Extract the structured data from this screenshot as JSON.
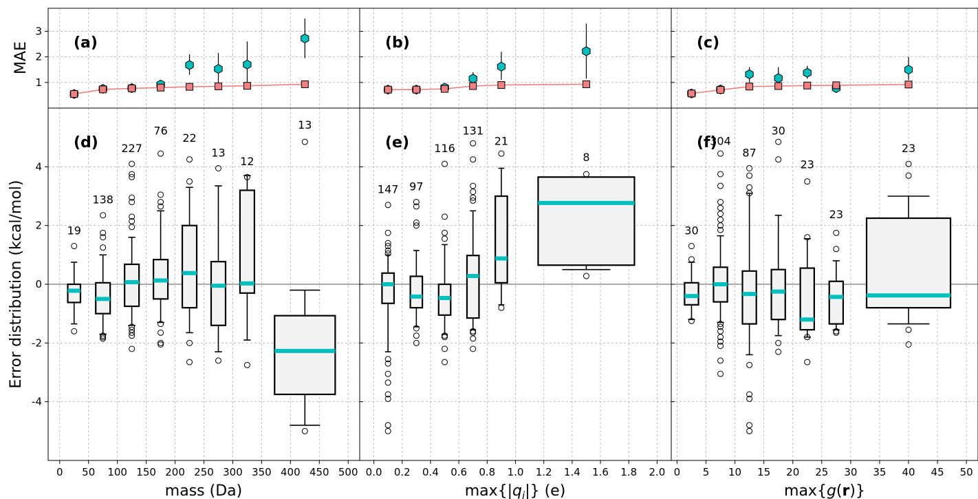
{
  "chart_data": [
    {
      "type": "line",
      "panel": "a",
      "panel_label": "(a)",
      "ylabel": "MAE",
      "ylim": [
        0,
        3.9
      ],
      "yticks": [
        "1",
        "2",
        "3"
      ],
      "xlim": [
        -20,
        520
      ],
      "grid": true,
      "series": [
        {
          "marker": "hexagon",
          "color": "#00bfbf",
          "x": [
            25,
            75,
            125,
            175,
            225,
            275,
            325,
            425
          ],
          "y": [
            0.55,
            0.75,
            0.78,
            0.92,
            1.68,
            1.53,
            1.7,
            2.72
          ],
          "err_low": [
            0.45,
            0.65,
            0.7,
            0.75,
            1.3,
            1.0,
            1.0,
            1.95
          ],
          "err_high": [
            0.65,
            0.85,
            0.88,
            1.05,
            2.1,
            2.15,
            2.6,
            3.5
          ]
        },
        {
          "marker": "square",
          "color": "#f08080",
          "x": [
            25,
            75,
            125,
            175,
            225,
            275,
            325,
            425
          ],
          "y": [
            0.55,
            0.73,
            0.77,
            0.8,
            0.83,
            0.85,
            0.87,
            0.93
          ]
        }
      ]
    },
    {
      "type": "line",
      "panel": "b",
      "panel_label": "(b)",
      "ylim": [
        0,
        3.9
      ],
      "xlim": [
        -0.1,
        2.1
      ],
      "grid": true,
      "series": [
        {
          "marker": "hexagon",
          "color": "#00bfbf",
          "x": [
            0.1,
            0.3,
            0.5,
            0.7,
            0.9,
            1.5
          ],
          "y": [
            0.72,
            0.72,
            0.8,
            1.15,
            1.62,
            2.22
          ],
          "err_low": [
            0.62,
            0.62,
            0.7,
            0.9,
            1.1,
            1.15
          ],
          "err_high": [
            0.82,
            0.82,
            0.9,
            1.4,
            2.2,
            3.3
          ]
        },
        {
          "marker": "square",
          "color": "#f08080",
          "x": [
            0.1,
            0.3,
            0.5,
            0.7,
            0.9,
            1.5
          ],
          "y": [
            0.72,
            0.72,
            0.75,
            0.86,
            0.9,
            0.93
          ]
        }
      ]
    },
    {
      "type": "line",
      "panel": "c",
      "panel_label": "(c)",
      "ylim": [
        0,
        3.9
      ],
      "xlim": [
        -1,
        52
      ],
      "grid": true,
      "series": [
        {
          "marker": "hexagon",
          "color": "#00bfbf",
          "x": [
            2.5,
            7.5,
            12.5,
            17.5,
            22.5,
            27.5,
            40
          ],
          "y": [
            0.57,
            0.73,
            1.32,
            1.17,
            1.38,
            0.78,
            1.5
          ],
          "err_low": [
            0.47,
            0.63,
            1.0,
            0.8,
            1.15,
            0.6,
            1.1
          ],
          "err_high": [
            0.67,
            0.83,
            1.6,
            1.6,
            1.65,
            0.95,
            2.0
          ]
        },
        {
          "marker": "square",
          "color": "#f08080",
          "x": [
            2.5,
            7.5,
            12.5,
            17.5,
            22.5,
            27.5,
            40
          ],
          "y": [
            0.57,
            0.71,
            0.84,
            0.86,
            0.88,
            0.89,
            0.92
          ]
        }
      ]
    },
    {
      "type": "box",
      "panel": "d",
      "panel_label": "(d)",
      "xlabel": "mass (Da)",
      "ylabel": "Error distribution (kcal/mol)",
      "ylim": [
        -6,
        6
      ],
      "xlim": [
        -20,
        520
      ],
      "yticks": [
        "-4",
        "-2",
        "0",
        "2",
        "4"
      ],
      "xticks": [
        "0",
        "50",
        "100",
        "150",
        "200",
        "250",
        "300",
        "350",
        "400",
        "450",
        "500"
      ],
      "grid": true,
      "median_color": "#00bfbf",
      "boxes": [
        {
          "x": 25,
          "width": 22,
          "count": "19",
          "count_y": 1.7,
          "q1": -0.62,
          "median": -0.22,
          "q3": 0.0,
          "whislo": -1.35,
          "whishi": 0.75,
          "outliers": [
            1.3,
            -1.6
          ]
        },
        {
          "x": 75,
          "width": 25,
          "count": "138",
          "count_y": 2.75,
          "q1": -1.0,
          "median": -0.5,
          "q3": 0.05,
          "whislo": -1.7,
          "whishi": 1.0,
          "outliers": [
            2.35,
            1.75,
            1.6,
            1.25,
            -1.75,
            -1.8,
            -1.85
          ]
        },
        {
          "x": 125,
          "width": 25,
          "count": "227",
          "count_y": 4.5,
          "q1": -0.75,
          "median": 0.07,
          "q3": 0.68,
          "whislo": -1.4,
          "whishi": 1.6,
          "outliers": [
            4.1,
            3.75,
            3.65,
            2.95,
            2.8,
            2.3,
            2.15,
            1.95,
            -1.45,
            -1.55,
            -1.65,
            -1.75,
            -2.2
          ]
        },
        {
          "x": 175,
          "width": 25,
          "count": "76",
          "count_y": 5.1,
          "q1": -0.5,
          "median": 0.13,
          "q3": 0.84,
          "whislo": -1.3,
          "whishi": 2.5,
          "outliers": [
            4.45,
            3.05,
            2.8,
            2.65,
            -1.35,
            -1.65,
            -2.0,
            -2.05
          ]
        },
        {
          "x": 225,
          "width": 25,
          "count": "22",
          "count_y": 4.85,
          "q1": -0.8,
          "median": 0.38,
          "q3": 2.0,
          "whislo": -1.65,
          "whishi": 3.3,
          "outliers": [
            4.25,
            3.5,
            -2.0,
            -2.65
          ]
        },
        {
          "x": 275,
          "width": 25,
          "count": "13",
          "count_y": 4.35,
          "q1": -1.4,
          "median": -0.05,
          "q3": 0.77,
          "whislo": -2.3,
          "whishi": 3.35,
          "outliers": [
            3.95,
            -2.6
          ]
        },
        {
          "x": 325,
          "width": 25,
          "count": "12",
          "count_y": 4.05,
          "q1": -0.3,
          "median": 0.03,
          "q3": 3.2,
          "whislo": -1.9,
          "whishi": 3.7,
          "outliers": [
            3.65,
            -2.75
          ]
        },
        {
          "x": 425,
          "width": 105,
          "count": "13",
          "count_y": 5.3,
          "q1": -3.75,
          "median": -2.27,
          "q3": -1.07,
          "whislo": -4.8,
          "whishi": -0.2,
          "outliers": [
            4.85,
            -5.0
          ]
        }
      ]
    },
    {
      "type": "box",
      "panel": "e",
      "panel_label": "(e)",
      "xlabel": "max{|q_i|} (e)",
      "ylim": [
        -6,
        6
      ],
      "xlim": [
        -0.1,
        2.1
      ],
      "xticks": [
        "0.0",
        "0.2",
        "0.4",
        "0.6",
        "0.8",
        "1.0",
        "1.2",
        "1.4",
        "1.6",
        "1.8",
        "2.0"
      ],
      "grid": true,
      "median_color": "#00bfbf",
      "boxes": [
        {
          "x": 0.1,
          "width": 0.085,
          "count": "147",
          "count_y": 3.1,
          "q1": -0.65,
          "median": 0.0,
          "q3": 0.38,
          "whislo": -2.3,
          "whishi": 1.0,
          "outliers": [
            2.7,
            1.75,
            1.4,
            1.3,
            1.15,
            1.05,
            -2.55,
            -2.7,
            -3.05,
            -3.35,
            -3.75,
            -3.9,
            -4.8,
            -5.0
          ]
        },
        {
          "x": 0.3,
          "width": 0.085,
          "count": "97",
          "count_y": 3.2,
          "q1": -0.8,
          "median": -0.42,
          "q3": 0.27,
          "whislo": -1.45,
          "whishi": 1.15,
          "outliers": [
            2.8,
            2.65,
            2.1,
            2.0,
            -1.5,
            -1.75,
            -2.0
          ]
        },
        {
          "x": 0.5,
          "width": 0.085,
          "count": "116",
          "count_y": 4.5,
          "q1": -1.05,
          "median": -0.47,
          "q3": 0.0,
          "whislo": -1.7,
          "whishi": 1.35,
          "outliers": [
            4.1,
            2.3,
            1.75,
            1.55,
            -1.75,
            -1.8,
            -2.2,
            -2.65
          ]
        },
        {
          "x": 0.7,
          "width": 0.085,
          "count": "131",
          "count_y": 5.1,
          "q1": -1.15,
          "median": 0.28,
          "q3": 0.98,
          "whislo": -1.55,
          "whishi": 2.5,
          "outliers": [
            4.8,
            4.25,
            3.35,
            3.15,
            2.95,
            2.85,
            -1.6,
            -1.65,
            -1.85,
            -2.2
          ]
        },
        {
          "x": 0.9,
          "width": 0.085,
          "count": "21",
          "count_y": 4.75,
          "q1": 0.05,
          "median": 0.88,
          "q3": 3.0,
          "whislo": -0.7,
          "whishi": 3.95,
          "outliers": [
            4.45,
            -0.8
          ]
        },
        {
          "x": 1.5,
          "width": 0.68,
          "count": "8",
          "count_y": 4.2,
          "q1": 0.65,
          "median": 2.77,
          "q3": 3.65,
          "whislo": 0.5,
          "whishi": 3.65,
          "outliers": [
            3.75,
            0.28
          ]
        }
      ]
    },
    {
      "type": "box",
      "panel": "f",
      "panel_label": "(f)",
      "xlabel": "max{g(r)}",
      "ylim": [
        -6,
        6
      ],
      "xlim": [
        -1,
        52
      ],
      "xticks": [
        "0",
        "5",
        "10",
        "15",
        "20",
        "25",
        "30",
        "35",
        "40",
        "45",
        "50"
      ],
      "grid": true,
      "median_color": "#00bfbf",
      "boxes": [
        {
          "x": 2.5,
          "width": 2.4,
          "count": "30",
          "count_y": 1.7,
          "q1": -0.7,
          "median": -0.4,
          "q3": 0.05,
          "whislo": -1.2,
          "whishi": 0.75,
          "outliers": [
            1.3,
            0.85,
            -1.25
          ]
        },
        {
          "x": 7.5,
          "width": 2.4,
          "count": "304",
          "count_y": 4.75,
          "q1": -0.6,
          "median": 0.0,
          "q3": 0.58,
          "whislo": -1.3,
          "whishi": 1.65,
          "outliers": [
            4.45,
            3.75,
            3.35,
            2.8,
            2.6,
            2.4,
            2.2,
            2.0,
            1.85,
            -1.35,
            -1.45,
            -1.6,
            -1.8,
            -1.95,
            -2.1,
            -2.6,
            -3.05
          ]
        },
        {
          "x": 12.5,
          "width": 2.4,
          "count": "87",
          "count_y": 4.35,
          "q1": -1.35,
          "median": -0.33,
          "q3": 0.45,
          "whislo": -2.4,
          "whishi": 3.1,
          "outliers": [
            3.95,
            3.7,
            3.3,
            3.1,
            -2.75,
            -3.75,
            -3.9,
            -4.8,
            -5.0
          ]
        },
        {
          "x": 17.5,
          "width": 2.4,
          "count": "30",
          "count_y": 5.1,
          "q1": -1.2,
          "median": -0.25,
          "q3": 0.5,
          "whislo": -1.75,
          "whishi": 2.35,
          "outliers": [
            4.85,
            4.25,
            -2.0,
            -2.3
          ]
        },
        {
          "x": 22.5,
          "width": 2.4,
          "count": "23",
          "count_y": 3.95,
          "q1": -1.55,
          "median": -1.2,
          "q3": 0.55,
          "whislo": -1.8,
          "whishi": 1.55,
          "outliers": [
            3.5,
            1.6,
            -1.8,
            -2.65
          ]
        },
        {
          "x": 27.5,
          "width": 2.4,
          "count": "23",
          "count_y": 2.25,
          "q1": -1.35,
          "median": -0.43,
          "q3": 0.1,
          "whislo": -1.55,
          "whishi": 0.8,
          "outliers": [
            1.75,
            1.2,
            -1.6,
            -1.65
          ]
        },
        {
          "x": 40,
          "width": 14.5,
          "count": "23",
          "count_y": 4.5,
          "q1": -0.8,
          "median": -0.38,
          "q3": 2.25,
          "whislo": -1.35,
          "whishi": 3.0,
          "outliers": [
            4.1,
            3.7,
            -1.55,
            -2.05
          ]
        }
      ]
    }
  ]
}
